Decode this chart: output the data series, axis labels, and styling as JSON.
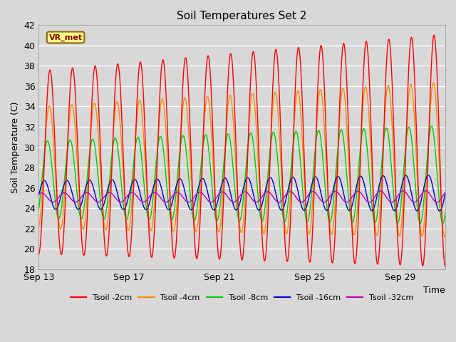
{
  "title": "Soil Temperatures Set 2",
  "xlabel": "Time",
  "ylabel": "Soil Temperature (C)",
  "ylim": [
    18,
    42
  ],
  "yticks": [
    18,
    20,
    22,
    24,
    26,
    28,
    30,
    32,
    34,
    36,
    38,
    40,
    42
  ],
  "xtick_labels": [
    "Sep 13",
    "Sep 17",
    "Sep 21",
    "Sep 25",
    "Sep 29"
  ],
  "annotation_text": "VR_met",
  "background_color": "#d8d8d8",
  "plot_bg_color": "#d8d8d8",
  "grid_color": "#ffffff",
  "legend_entries": [
    "Tsoil -2cm",
    "Tsoil -4cm",
    "Tsoil -8cm",
    "Tsoil -16cm",
    "Tsoil -32cm"
  ],
  "line_colors": [
    "#ff0000",
    "#ff8c00",
    "#00cc00",
    "#0000cc",
    "#bb00bb"
  ],
  "line_widths": [
    1.0,
    1.0,
    1.0,
    1.0,
    1.0
  ],
  "n_days": 18,
  "pts_per_day": 48,
  "amp_2cm": 9.0,
  "amp_4cm": 6.0,
  "amp_8cm": 3.8,
  "amp_16cm": 1.4,
  "amp_32cm": 0.45,
  "mean_2cm": 28.5,
  "mean_4cm": 28.0,
  "mean_8cm": 26.8,
  "mean_16cm": 25.3,
  "mean_32cm": 25.05,
  "phase_2cm": -0.25,
  "phase_4cm": -0.22,
  "phase_8cm": -0.14,
  "phase_16cm": 0.0,
  "phase_32cm": 0.12,
  "trend_2cm": 1.2,
  "trend_4cm": 0.8,
  "trend_8cm": 0.5,
  "trend_16cm": 0.2,
  "trend_32cm": 0.1,
  "amp_growth": 0.015
}
